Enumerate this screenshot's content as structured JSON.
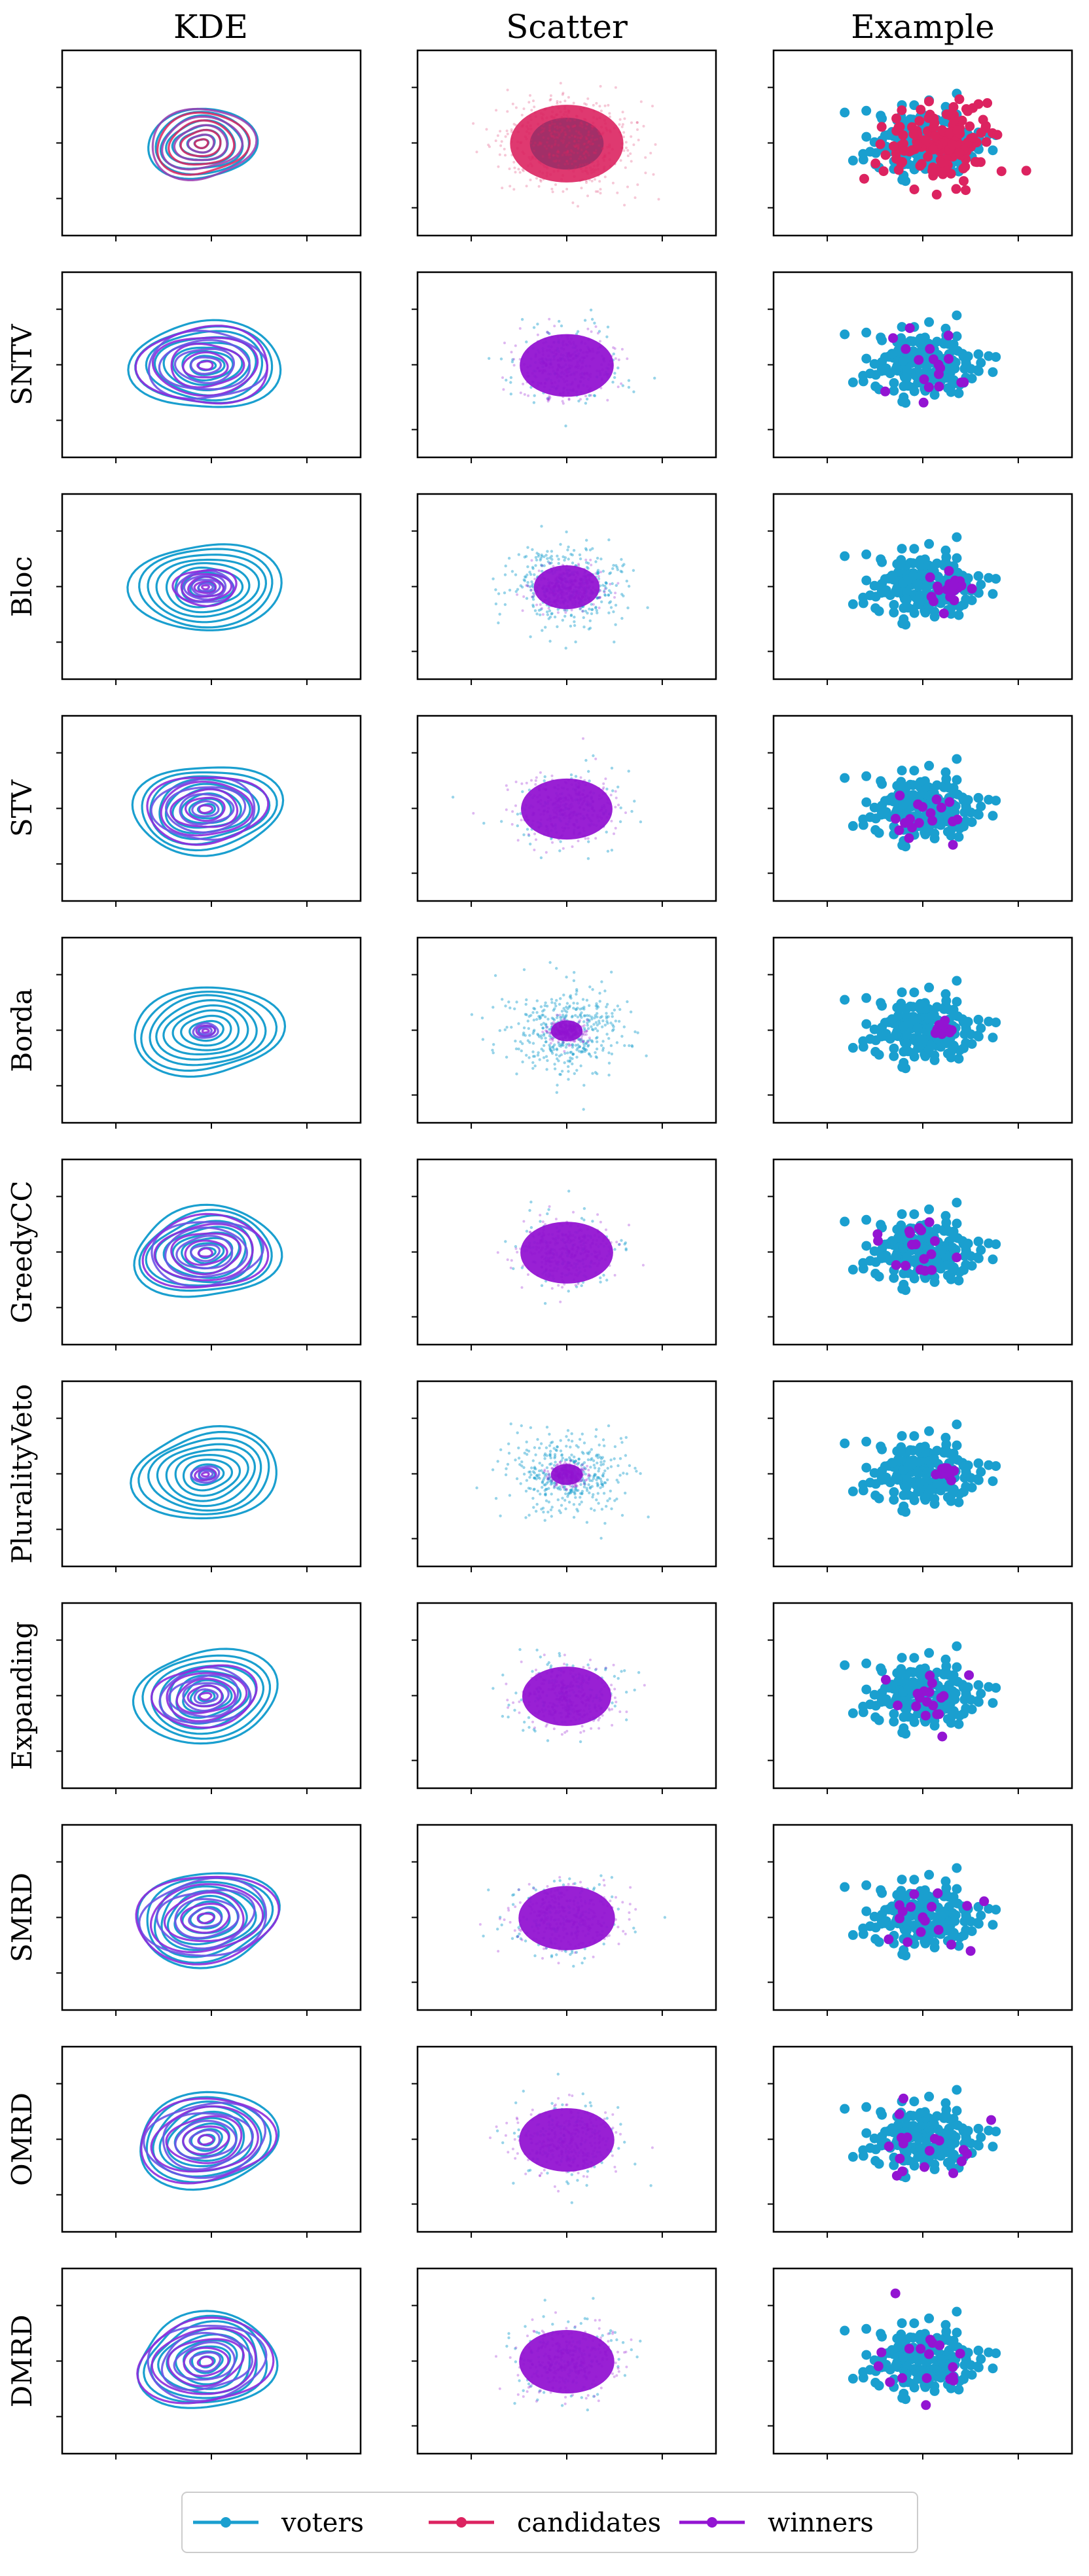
{
  "columns": [
    "KDE",
    "Scatter",
    "Example"
  ],
  "rows": [
    {
      "label": "",
      "mode": "cand"
    },
    {
      "label": "SNTV",
      "mode": "spread",
      "winner_spread": 0.95,
      "example_seed": 11
    },
    {
      "label": "Bloc",
      "mode": "center",
      "winner_spread": 0.45,
      "example_seed": 12
    },
    {
      "label": "STV",
      "mode": "spread",
      "winner_spread": 0.85,
      "example_seed": 13
    },
    {
      "label": "Borda",
      "mode": "center",
      "winner_spread": 0.18,
      "example_seed": 14
    },
    {
      "label": "GreedyCC",
      "mode": "spread",
      "winner_spread": 0.9,
      "example_seed": 15
    },
    {
      "label": "PluralityVeto",
      "mode": "center",
      "winner_spread": 0.2,
      "example_seed": 16
    },
    {
      "label": "Expanding",
      "mode": "spread",
      "winner_spread": 0.75,
      "example_seed": 17
    },
    {
      "label": "SMRD",
      "mode": "spread",
      "winner_spread": 1.05,
      "example_seed": 18
    },
    {
      "label": "OMRD",
      "mode": "spread",
      "winner_spread": 1.0,
      "example_seed": 19
    },
    {
      "label": "DMRD",
      "mode": "spread",
      "winner_spread": 1.0,
      "example_seed": 20
    }
  ],
  "legend": [
    {
      "label": "voters",
      "color": "#1a9fcf"
    },
    {
      "label": "candidates",
      "color": "#dc2360"
    },
    {
      "label": "winners",
      "color": "#9314d2"
    }
  ],
  "chart_data": {
    "type": "scatter",
    "description_of_series": [
      "voters",
      "candidates",
      "winners"
    ],
    "colors": {
      "voters": "#1a9fcf",
      "candidates": "#dc2360",
      "winners": "#9314d2"
    },
    "tick_labels_visible": false
  }
}
